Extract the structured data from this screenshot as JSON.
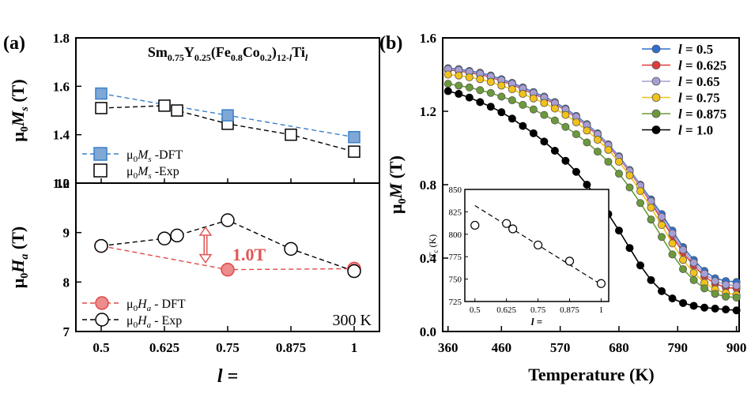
{
  "panel_a": {
    "tag": "(a)",
    "formula": {
      "parts": [
        {
          "t": "Sm",
          "s": "n"
        },
        {
          "t": "0.75",
          "s": "sub"
        },
        {
          "t": "Y",
          "s": "n"
        },
        {
          "t": "0.25",
          "s": "sub"
        },
        {
          "t": "(Fe",
          "s": "n"
        },
        {
          "t": "0.8",
          "s": "sub"
        },
        {
          "t": "Co",
          "s": "n"
        },
        {
          "t": "0.2",
          "s": "sub"
        },
        {
          "t": ")",
          "s": "n"
        },
        {
          "t": "12-",
          "s": "sub"
        },
        {
          "t": "l",
          "s": "subi"
        },
        {
          "t": "Ti",
          "s": "n"
        },
        {
          "t": "l",
          "s": "subi"
        }
      ]
    },
    "xlabel": "l =",
    "temp_label": "300 K",
    "gap_label": "1.0T",
    "ylabel_top": {
      "mu": "μ",
      "sub": "0",
      "sym": "M",
      "symsub": "s",
      "unit": " (T)"
    },
    "ylabel_bottom": {
      "mu": "μ",
      "sub": "0",
      "sym": "H",
      "symsub": "a",
      "unit": " (T)"
    },
    "legend_top": [
      {
        "mu": "μ",
        "sub": "0",
        "sym": "M",
        "symsub": "s",
        "rest": " -DFT"
      },
      {
        "mu": "μ",
        "sub": "0",
        "sym": "M",
        "symsub": "s",
        "rest": " -Exp"
      }
    ],
    "legend_bottom": [
      {
        "mu": "μ",
        "sub": "0",
        "sym": "H",
        "symsub": "a",
        "rest": " - DFT"
      },
      {
        "mu": "μ",
        "sub": "0",
        "sym": "H",
        "symsub": "a",
        "rest": " - Exp"
      }
    ],
    "x_ticks": [
      "0.5",
      "0.625",
      "0.75",
      "0.875",
      "1"
    ],
    "top_y_ticks": [
      "1.2",
      "1.4",
      "1.6",
      "1.8"
    ],
    "bottom_y_ticks": [
      "7",
      "8",
      "9",
      "10"
    ]
  },
  "panel_b": {
    "tag": "(b)",
    "xlabel": "Temperature (K)",
    "ylabel": {
      "mu": "μ",
      "sub": "0",
      "sym": "M",
      "unit": " (T)"
    },
    "x_ticks": [
      "360",
      "460",
      "570",
      "680",
      "790",
      "900"
    ],
    "y_ticks": [
      "0.0",
      "0.4",
      "0.8",
      "1.2",
      "1.6"
    ],
    "legend": [
      {
        "sym": "l",
        "rest": " = 0.5"
      },
      {
        "sym": "l",
        "rest": " = 0.625"
      },
      {
        "sym": "l",
        "rest": " = 0.65"
      },
      {
        "sym": "l",
        "rest": " = 0.75"
      },
      {
        "sym": "l",
        "rest": " = 0.875"
      },
      {
        "sym": "l",
        "rest": " = 1.0"
      }
    ],
    "inset": {
      "ylabel": "T",
      "ylabel_sub": "c",
      "ylabel_unit": " (K)",
      "xlabel": "l =",
      "x_ticks": [
        "0.5",
        "0.625",
        "0.75",
        "0.875",
        "1"
      ],
      "y_ticks": [
        "725",
        "750",
        "775",
        "800",
        "825",
        "850"
      ]
    }
  },
  "colors": {
    "dft_ms": "#3a80c8",
    "dft_ms_fill": "#7fa8d6",
    "dft_ha": "#e04848",
    "dft_ha_fill": "#ec8c8c",
    "exp": "#000000",
    "arrow": "#e05555",
    "series": [
      "#2f6fcf",
      "#e03c3c",
      "#a79ed4",
      "#f2c21a",
      "#6b9a3a",
      "#000000"
    ],
    "series_line": [
      "#2f6fcf",
      "#e03c3c",
      "#a79ed4",
      "#f2c21a",
      "#6b9a3a",
      "#000000"
    ]
  },
  "chart_data": [
    {
      "type": "line",
      "panel": "a-top",
      "x": [
        0.5,
        0.625,
        0.65,
        0.75,
        0.875,
        1.0
      ],
      "series": [
        {
          "name": "μ0Ms -DFT",
          "x": [
            0.5,
            0.75,
            1.0
          ],
          "values": [
            1.57,
            1.48,
            1.39
          ]
        },
        {
          "name": "μ0Ms -Exp",
          "x": [
            0.5,
            0.625,
            0.65,
            0.75,
            0.875,
            1.0
          ],
          "values": [
            1.51,
            1.52,
            1.5,
            1.445,
            1.4,
            1.33
          ]
        }
      ],
      "xlim": [
        0.45,
        1.05
      ],
      "ylim": [
        1.2,
        1.8
      ],
      "ylabel": "μ0Ms (T)"
    },
    {
      "type": "line",
      "panel": "a-bottom",
      "series": [
        {
          "name": "μ0Ha - DFT",
          "x": [
            0.5,
            0.75,
            1.0
          ],
          "values": [
            8.73,
            8.25,
            8.27
          ]
        },
        {
          "name": "μ0Ha - Exp",
          "x": [
            0.5,
            0.625,
            0.65,
            0.75,
            0.875,
            1.0
          ],
          "values": [
            8.73,
            8.88,
            8.94,
            9.25,
            8.67,
            8.22
          ]
        }
      ],
      "xlim": [
        0.45,
        1.05
      ],
      "ylim": [
        7,
        10
      ],
      "ylabel": "μ0Ha (T)",
      "xlabel": "l =",
      "annotations": [
        "1.0T",
        "300 K"
      ]
    },
    {
      "type": "line",
      "panel": "b",
      "x": [
        360,
        380,
        400,
        420,
        440,
        460,
        480,
        500,
        520,
        540,
        560,
        580,
        600,
        620,
        640,
        660,
        680,
        700,
        720,
        740,
        760,
        780,
        800,
        820,
        840,
        860,
        880,
        900
      ],
      "series": [
        {
          "name": "l = 0.5",
          "values": [
            1.435,
            1.43,
            1.42,
            1.41,
            1.395,
            1.375,
            1.355,
            1.33,
            1.305,
            1.28,
            1.25,
            1.215,
            1.175,
            1.13,
            1.08,
            1.02,
            0.955,
            0.88,
            0.8,
            0.72,
            0.64,
            0.55,
            0.46,
            0.39,
            0.33,
            0.29,
            0.275,
            0.27
          ]
        },
        {
          "name": "l = 0.625",
          "values": [
            1.425,
            1.42,
            1.41,
            1.4,
            1.385,
            1.365,
            1.345,
            1.32,
            1.295,
            1.27,
            1.24,
            1.205,
            1.165,
            1.12,
            1.07,
            1.01,
            0.945,
            0.87,
            0.79,
            0.7,
            0.61,
            0.52,
            0.43,
            0.36,
            0.3,
            0.26,
            0.24,
            0.235
          ]
        },
        {
          "name": "l = 0.65",
          "values": [
            1.43,
            1.425,
            1.415,
            1.405,
            1.39,
            1.37,
            1.35,
            1.325,
            1.3,
            1.275,
            1.245,
            1.21,
            1.17,
            1.125,
            1.075,
            1.015,
            0.95,
            0.875,
            0.795,
            0.71,
            0.625,
            0.535,
            0.445,
            0.375,
            0.315,
            0.275,
            0.255,
            0.25
          ]
        },
        {
          "name": "l = 0.75",
          "values": [
            1.4,
            1.395,
            1.385,
            1.375,
            1.36,
            1.34,
            1.32,
            1.295,
            1.27,
            1.245,
            1.215,
            1.18,
            1.14,
            1.095,
            1.045,
            0.99,
            0.925,
            0.85,
            0.765,
            0.675,
            0.58,
            0.48,
            0.39,
            0.32,
            0.265,
            0.23,
            0.21,
            0.2
          ]
        },
        {
          "name": "l = 0.875",
          "values": [
            1.35,
            1.34,
            1.33,
            1.315,
            1.3,
            1.28,
            1.26,
            1.235,
            1.21,
            1.18,
            1.15,
            1.115,
            1.075,
            1.03,
            0.98,
            0.925,
            0.86,
            0.785,
            0.7,
            0.61,
            0.515,
            0.42,
            0.34,
            0.28,
            0.235,
            0.205,
            0.19,
            0.185
          ]
        },
        {
          "name": "l = 1.0",
          "values": [
            1.31,
            1.295,
            1.275,
            1.25,
            1.225,
            1.195,
            1.16,
            1.12,
            1.08,
            1.035,
            0.985,
            0.93,
            0.87,
            0.8,
            0.725,
            0.64,
            0.55,
            0.455,
            0.36,
            0.28,
            0.22,
            0.18,
            0.155,
            0.14,
            0.13,
            0.125,
            0.12,
            0.115
          ]
        }
      ],
      "xlim": [
        350,
        905
      ],
      "ylim": [
        0.0,
        1.6
      ],
      "xlabel": "Temperature (K)",
      "ylabel": "μ0M (T)",
      "legend": "top-right"
    },
    {
      "type": "line",
      "panel": "b-inset",
      "series": [
        {
          "name": "Tc",
          "x": [
            0.5,
            0.625,
            0.65,
            0.75,
            0.875,
            1.0
          ],
          "values": [
            810,
            812,
            806,
            788,
            770,
            745
          ]
        }
      ],
      "fit_line": {
        "x": [
          0.5,
          1.0
        ],
        "values": [
          832,
          744
        ]
      },
      "xlim": [
        0.46,
        1.03
      ],
      "ylim": [
        725,
        850
      ],
      "ylabel": "Tc (K)",
      "xlabel": "l ="
    }
  ]
}
